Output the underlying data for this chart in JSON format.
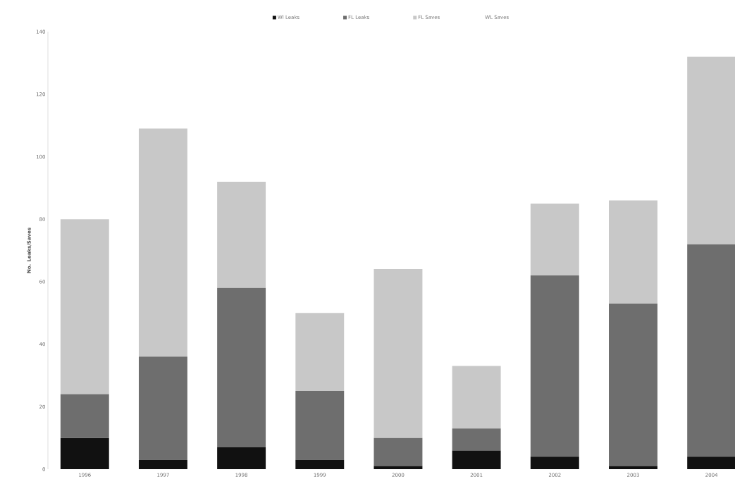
{
  "chart_data": {
    "type": "bar",
    "stacked": true,
    "ylabel": "No. Leaks/Saves",
    "categories": [
      "1996",
      "1997",
      "1998",
      "1999",
      "2000",
      "2001",
      "2002",
      "2003",
      "2004"
    ],
    "series": [
      {
        "name": "Wl Leaks",
        "color": "#111111",
        "values": [
          10,
          3,
          7,
          3,
          1,
          6,
          4,
          1,
          4
        ]
      },
      {
        "name": "FL Leaks",
        "color": "#6e6e6e",
        "values": [
          14,
          33,
          51,
          22,
          9,
          7,
          58,
          52,
          68
        ]
      },
      {
        "name": "FL Saves",
        "color": "#c8c8c8",
        "values": [
          56,
          73,
          34,
          25,
          54,
          20,
          23,
          33,
          60
        ]
      },
      {
        "name": "WL Saves",
        "values": [
          null,
          null,
          null,
          null,
          null,
          null,
          null,
          null,
          null
        ]
      }
    ],
    "ylim": [
      0,
      140
    ],
    "yticks": [
      0,
      20,
      40,
      60,
      80,
      100,
      120,
      140
    ],
    "grid": false,
    "legend": "top"
  }
}
